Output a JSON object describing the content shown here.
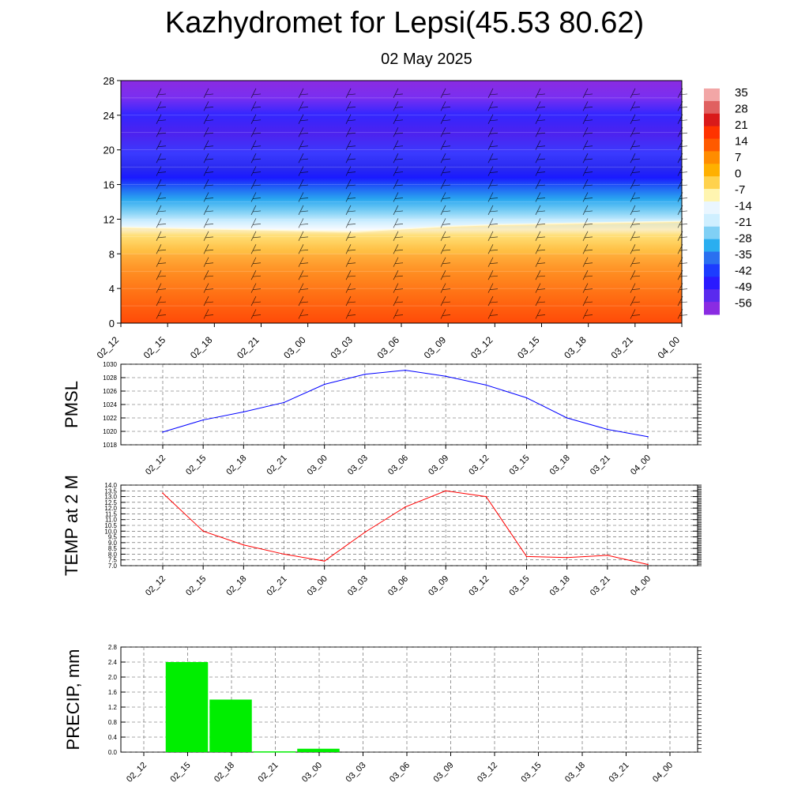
{
  "title": "Kazhydromet for Lepsi(45.53 80.62)",
  "subtitle": "02 May 2025",
  "time_labels": [
    "02_12",
    "02_15",
    "02_18",
    "02_21",
    "03_00",
    "03_03",
    "03_06",
    "03_09",
    "03_12",
    "03_15",
    "03_18",
    "03_21",
    "04_00"
  ],
  "chart_data": [
    {
      "type": "heatmap",
      "name": "cross-section",
      "x": [
        "02_12",
        "02_15",
        "02_18",
        "02_21",
        "03_00",
        "03_03",
        "03_06",
        "03_09",
        "03_12",
        "03_15",
        "03_18",
        "03_21",
        "04_00"
      ],
      "ylim": [
        0,
        28
      ],
      "yticks": [
        0,
        4,
        8,
        12,
        16,
        20,
        24,
        28
      ],
      "freezing_level": [
        11.0,
        10.9,
        10.8,
        10.7,
        10.6,
        10.5,
        10.8,
        11.1,
        11.3,
        11.4,
        11.5,
        11.6,
        11.7
      ],
      "colorbar_labels": [
        "35",
        "28",
        "21",
        "14",
        "7",
        "0",
        "-7",
        "-14",
        "-21",
        "-28",
        "-35",
        "-42",
        "-49",
        "-56"
      ],
      "colors": [
        "#f2a6a6",
        "#d91a1a",
        "#ff4d00",
        "#ff8c00",
        "#ffd24d",
        "#fff5b0",
        "#cfefff",
        "#2aaef0",
        "#1c3cff",
        "#8a2be2"
      ]
    },
    {
      "type": "line",
      "ylabel": "PMSL",
      "categories": [
        "02_12",
        "02_15",
        "02_18",
        "02_21",
        "03_00",
        "03_03",
        "03_06",
        "03_09",
        "03_12",
        "03_15",
        "03_18",
        "03_21",
        "04_00"
      ],
      "values": [
        1019.9,
        1021.7,
        1022.9,
        1024.3,
        1027.0,
        1028.5,
        1029.1,
        1028.2,
        1026.9,
        1025.0,
        1022.0,
        1020.3,
        1019.2
      ],
      "ylim": [
        1018,
        1030
      ],
      "yticks": [
        "1018",
        "1020",
        "1022",
        "1024",
        "1026",
        "1028",
        "1030"
      ],
      "color": "#0000ff"
    },
    {
      "type": "line",
      "ylabel": "TEMP at 2 M",
      "categories": [
        "02_12",
        "02_15",
        "02_18",
        "02_21",
        "03_00",
        "03_03",
        "03_06",
        "03_09",
        "03_12",
        "03_15",
        "03_18",
        "03_21",
        "04_00"
      ],
      "values": [
        13.3,
        10.0,
        8.8,
        8.0,
        7.4,
        9.9,
        12.1,
        13.5,
        13.0,
        7.8,
        7.7,
        7.9,
        7.1
      ],
      "ylim": [
        7.0,
        14.0
      ],
      "yticks": [
        "7.0",
        "7.5",
        "8.0",
        "8.5",
        "9.0",
        "9.5",
        "10.0",
        "10.5",
        "11.0",
        "11.5",
        "12.0",
        "12.5",
        "13.0",
        "13.5",
        "14.0"
      ],
      "color": "#ff0000"
    },
    {
      "type": "bar",
      "ylabel": "PRECIP, mm",
      "categories": [
        "02_12",
        "02_15",
        "02_18",
        "02_21",
        "03_00",
        "03_03",
        "03_06",
        "03_09",
        "03_12",
        "03_15",
        "03_18",
        "03_21",
        "04_00"
      ],
      "values": [
        0,
        2.4,
        1.4,
        0.02,
        0.09,
        0,
        0,
        0,
        0,
        0,
        0,
        0,
        0
      ],
      "ylim": [
        0,
        2.8
      ],
      "yticks": [
        "0.0",
        "0.4",
        "0.8",
        "1.2",
        "1.6",
        "2.0",
        "2.4",
        "2.8"
      ],
      "color": "#00ee00"
    }
  ]
}
